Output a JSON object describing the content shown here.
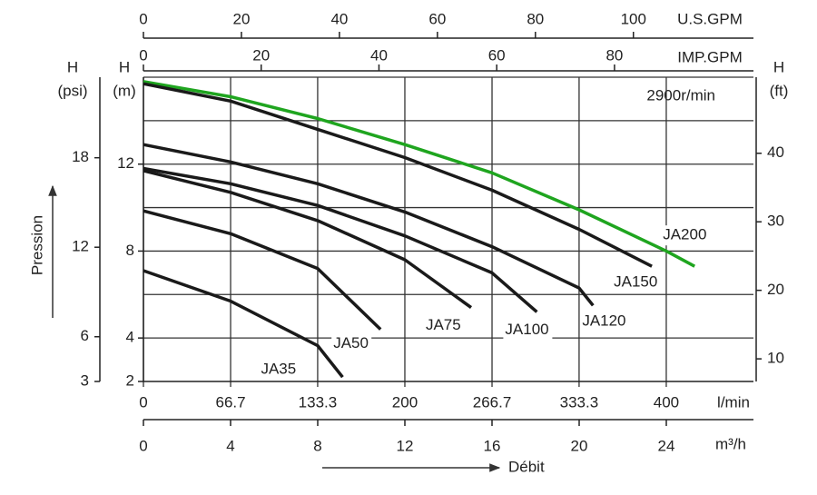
{
  "chart_data": {
    "type": "line",
    "annotation": "2900r/min",
    "x_axis_title": "Débit",
    "y_axis_title": "Pression",
    "x_label": "l/min",
    "xlim": [
      0,
      466.7
    ],
    "xticks": [
      0,
      66.7,
      133.3,
      200,
      266.7,
      333.3,
      400
    ],
    "y_label": "H",
    "y_unit": "(m)",
    "ylim": [
      2,
      16
    ],
    "yticks": [
      2,
      4,
      8,
      12
    ],
    "ygrid": [
      4,
      6,
      8,
      10,
      12,
      14,
      16
    ],
    "psi_axis": {
      "label": "H",
      "unit": "(psi)",
      "lim": [
        3,
        23.4
      ],
      "ticks": [
        3,
        6,
        12,
        18
      ]
    },
    "ft_axis": {
      "label": "H",
      "unit": "(ft)",
      "lim": [
        6.7,
        51.1
      ],
      "ticks": [
        10,
        20,
        30,
        40
      ]
    },
    "usgpm_axis": {
      "label": "U.S.GPM",
      "lim": [
        0,
        124.5
      ],
      "ticks": [
        0,
        20,
        40,
        60,
        80,
        100
      ]
    },
    "impgpm_axis": {
      "label": "IMP.GPM",
      "lim": [
        0,
        103.6
      ],
      "ticks": [
        0,
        20,
        40,
        60,
        80
      ]
    },
    "m3h_axis": {
      "label": "m³/h",
      "lim": [
        0,
        28
      ],
      "ticks": [
        0,
        4,
        8,
        12,
        16,
        20,
        24
      ]
    },
    "series": [
      {
        "name": "JA200",
        "color": "#1fa51f",
        "x": [
          0,
          66.7,
          133.3,
          200,
          266.7,
          333.3,
          400,
          421.7
        ],
        "values": [
          15.8,
          15.1,
          14.1,
          12.9,
          11.6,
          9.9,
          8.0,
          7.3
        ]
      },
      {
        "name": "JA150",
        "color": "#1a1a1a",
        "x": [
          0,
          66.7,
          133.3,
          200,
          266.7,
          333.3,
          389
        ],
        "values": [
          15.7,
          14.9,
          13.6,
          12.3,
          10.8,
          9.0,
          7.3
        ]
      },
      {
        "name": "JA120",
        "color": "#1a1a1a",
        "x": [
          0,
          66.7,
          133.3,
          200,
          266.7,
          333.3,
          344
        ],
        "values": [
          12.9,
          12.1,
          11.1,
          9.8,
          8.2,
          6.3,
          5.5
        ]
      },
      {
        "name": "JA100",
        "color": "#1a1a1a",
        "x": [
          0,
          66.7,
          133.3,
          200,
          266.7,
          301
        ],
        "values": [
          11.8,
          11.1,
          10.1,
          8.7,
          7.0,
          5.2
        ]
      },
      {
        "name": "JA75",
        "color": "#1a1a1a",
        "x": [
          0,
          66.7,
          133.3,
          200,
          250.7
        ],
        "values": [
          11.7,
          10.7,
          9.4,
          7.6,
          5.4
        ]
      },
      {
        "name": "JA50",
        "color": "#1a1a1a",
        "x": [
          0,
          66.7,
          133.3,
          181.4
        ],
        "values": [
          9.85,
          8.8,
          7.2,
          4.4
        ]
      },
      {
        "name": "JA35",
        "color": "#1a1a1a",
        "x": [
          0,
          66.7,
          133.3,
          152.4
        ],
        "values": [
          7.1,
          5.7,
          3.65,
          2.2
        ]
      }
    ]
  }
}
